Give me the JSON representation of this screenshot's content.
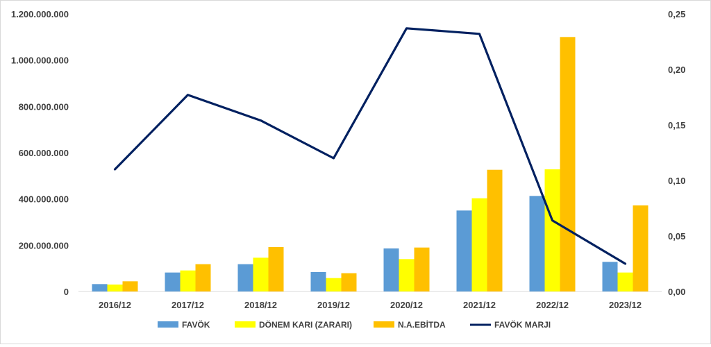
{
  "chart_data": {
    "type": "bar",
    "categories": [
      "2016/12",
      "2017/12",
      "2018/12",
      "2019/12",
      "2020/12",
      "2021/12",
      "2022/12",
      "2023/12"
    ],
    "series": [
      {
        "name": "FAVÖK",
        "kind": "bar",
        "axis": "left",
        "color": "#5B9BD5",
        "values": [
          32000000,
          82000000,
          118000000,
          84000000,
          186000000,
          350000000,
          413000000,
          128000000
        ]
      },
      {
        "name": "DÖNEM KARI (ZARARI)",
        "kind": "bar",
        "axis": "left",
        "color": "#FFFF00",
        "values": [
          30000000,
          91000000,
          146000000,
          58000000,
          140000000,
          403000000,
          528000000,
          82000000
        ]
      },
      {
        "name": "N.A.EBİTDA",
        "kind": "bar",
        "axis": "left",
        "color": "#FFC000",
        "values": [
          44000000,
          118000000,
          192000000,
          79000000,
          190000000,
          526000000,
          1100000000,
          372000000
        ]
      },
      {
        "name": "FAVÖK MARJI",
        "kind": "line",
        "axis": "right",
        "color": "#002060",
        "values": [
          0.11,
          0.177,
          0.154,
          0.12,
          0.237,
          0.232,
          0.064,
          0.025
        ]
      }
    ],
    "left_axis": {
      "ylim": [
        0,
        1200000000
      ],
      "ticks": [
        0,
        200000000,
        400000000,
        600000000,
        800000000,
        1000000000,
        1200000000
      ],
      "tick_labels": [
        "0",
        "200.000.000",
        "400.000.000",
        "600.000.000",
        "800.000.000",
        "1.000.000.000",
        "1.200.000.000"
      ]
    },
    "right_axis": {
      "ylim": [
        0,
        0.25
      ],
      "ticks": [
        0,
        0.05,
        0.1,
        0.15,
        0.2,
        0.25
      ],
      "tick_labels": [
        "0,00",
        "0,05",
        "0,10",
        "0,15",
        "0,20",
        "0,25"
      ]
    },
    "grid": false,
    "legend_position": "bottom"
  }
}
